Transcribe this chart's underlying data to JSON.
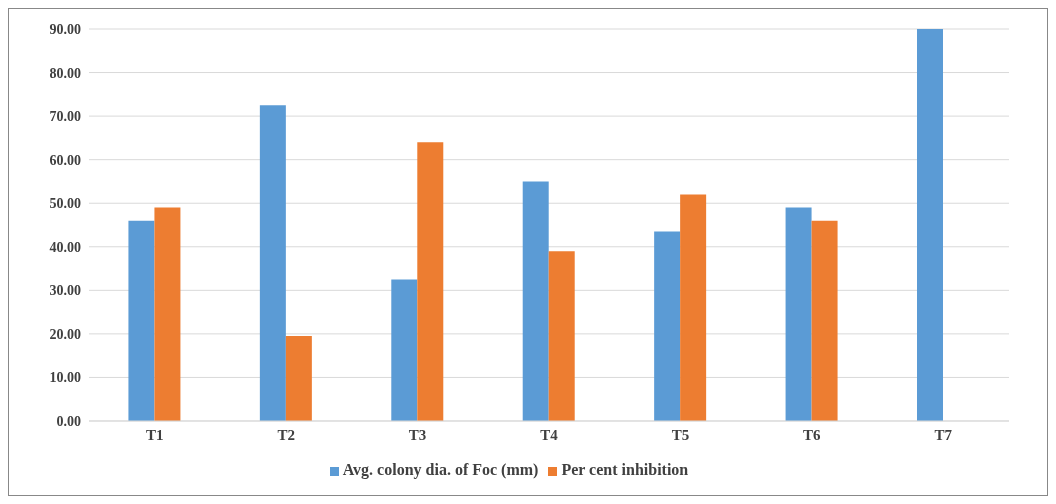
{
  "chart_data": {
    "type": "bar",
    "categories": [
      "T1",
      "T2",
      "T3",
      "T4",
      "T5",
      "T6",
      "T7"
    ],
    "series": [
      {
        "name": "Avg. colony dia. of Foc (mm)",
        "color": "#5b9bd5",
        "values": [
          46,
          72.5,
          32.5,
          55,
          43.5,
          49,
          90
        ]
      },
      {
        "name": "Per cent inhibition",
        "color": "#ed7d31",
        "values": [
          49,
          19.5,
          64,
          39,
          52,
          46,
          0
        ]
      }
    ],
    "ylim": [
      0,
      90
    ],
    "yticks": [
      {
        "value": 0,
        "label": "0.00"
      },
      {
        "value": 10,
        "label": "10.00"
      },
      {
        "value": 20,
        "label": "20.00"
      },
      {
        "value": 30,
        "label": "30.00"
      },
      {
        "value": 40,
        "label": "40.00"
      },
      {
        "value": 50,
        "label": "50.00"
      },
      {
        "value": 60,
        "label": "60.00"
      },
      {
        "value": 70,
        "label": "70.00"
      },
      {
        "value": 80,
        "label": "80.00"
      },
      {
        "value": 90,
        "label": "90.00"
      }
    ],
    "grid": "y",
    "legend": "bottom"
  }
}
